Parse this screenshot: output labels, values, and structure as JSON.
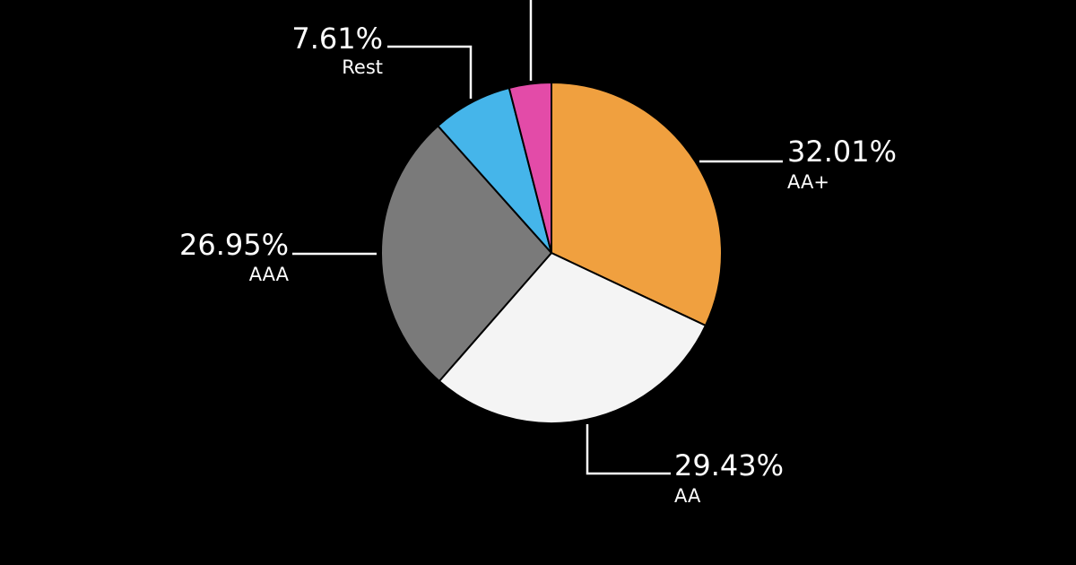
{
  "chart_data": {
    "type": "pie",
    "slices": [
      {
        "key": "aa-plus",
        "category": "AA+",
        "label": "32.01%",
        "value": 32.01,
        "color": "#F0A03F"
      },
      {
        "key": "aa",
        "category": "AA",
        "label": "29.43%",
        "value": 29.43,
        "color": "#F4F4F4"
      },
      {
        "key": "aaa",
        "category": "AAA",
        "label": "26.95%",
        "value": 26.95,
        "color": "#7A7A7A"
      },
      {
        "key": "rest",
        "category": "Rest",
        "label": "7.61%",
        "value": 7.61,
        "color": "#45B5EA"
      },
      {
        "key": "unlabeled",
        "category": "",
        "label": "",
        "value": 4.0,
        "color": "#E34BA8"
      }
    ],
    "start_angle": "12 o'clock",
    "direction": "clockwise",
    "background": "#000000"
  }
}
